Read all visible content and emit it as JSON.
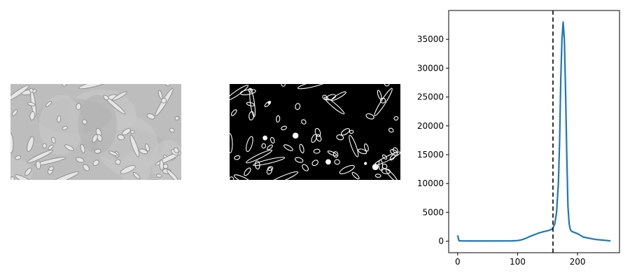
{
  "panels": {
    "gray": {
      "name": "grayscale-microscopy-image"
    },
    "binary": {
      "name": "binary-threshold-image"
    }
  },
  "colors": {
    "gray_bg": "#bdbdbd",
    "gray_fg_dark": "#8a8a8a",
    "gray_fg_light": "#e6e6e6",
    "binary_bg": "#000000",
    "binary_fg": "#ffffff",
    "series": "#1f77b4",
    "threshold": "#000000"
  },
  "chart_data": {
    "type": "line",
    "title": "",
    "xlabel": "",
    "ylabel": "",
    "xlim": [
      -15,
      270
    ],
    "ylim": [
      -2000,
      40000
    ],
    "xticks": [
      0,
      100,
      200
    ],
    "yticks": [
      0,
      5000,
      10000,
      15000,
      20000,
      25000,
      30000,
      35000
    ],
    "grid": false,
    "legend": "none",
    "threshold_x": 159,
    "series": [
      {
        "x": [
          0,
          2,
          5,
          20,
          50,
          90,
          100,
          105,
          110,
          115,
          120,
          125,
          130,
          135,
          140,
          145,
          150,
          153,
          156,
          159,
          162,
          165,
          168,
          170,
          172,
          174,
          176,
          178,
          180,
          182,
          184,
          186,
          188,
          190,
          195,
          200,
          205,
          210,
          220,
          230,
          240,
          250,
          255
        ],
        "y": [
          1000,
          100,
          50,
          30,
          30,
          50,
          100,
          200,
          350,
          550,
          800,
          1000,
          1200,
          1400,
          1550,
          1700,
          1800,
          1900,
          2000,
          2300,
          3000,
          5000,
          10000,
          17000,
          28000,
          35000,
          38000,
          35000,
          26000,
          15000,
          6000,
          3000,
          2000,
          1700,
          1500,
          1300,
          1000,
          700,
          500,
          300,
          200,
          100,
          50
        ]
      }
    ]
  }
}
